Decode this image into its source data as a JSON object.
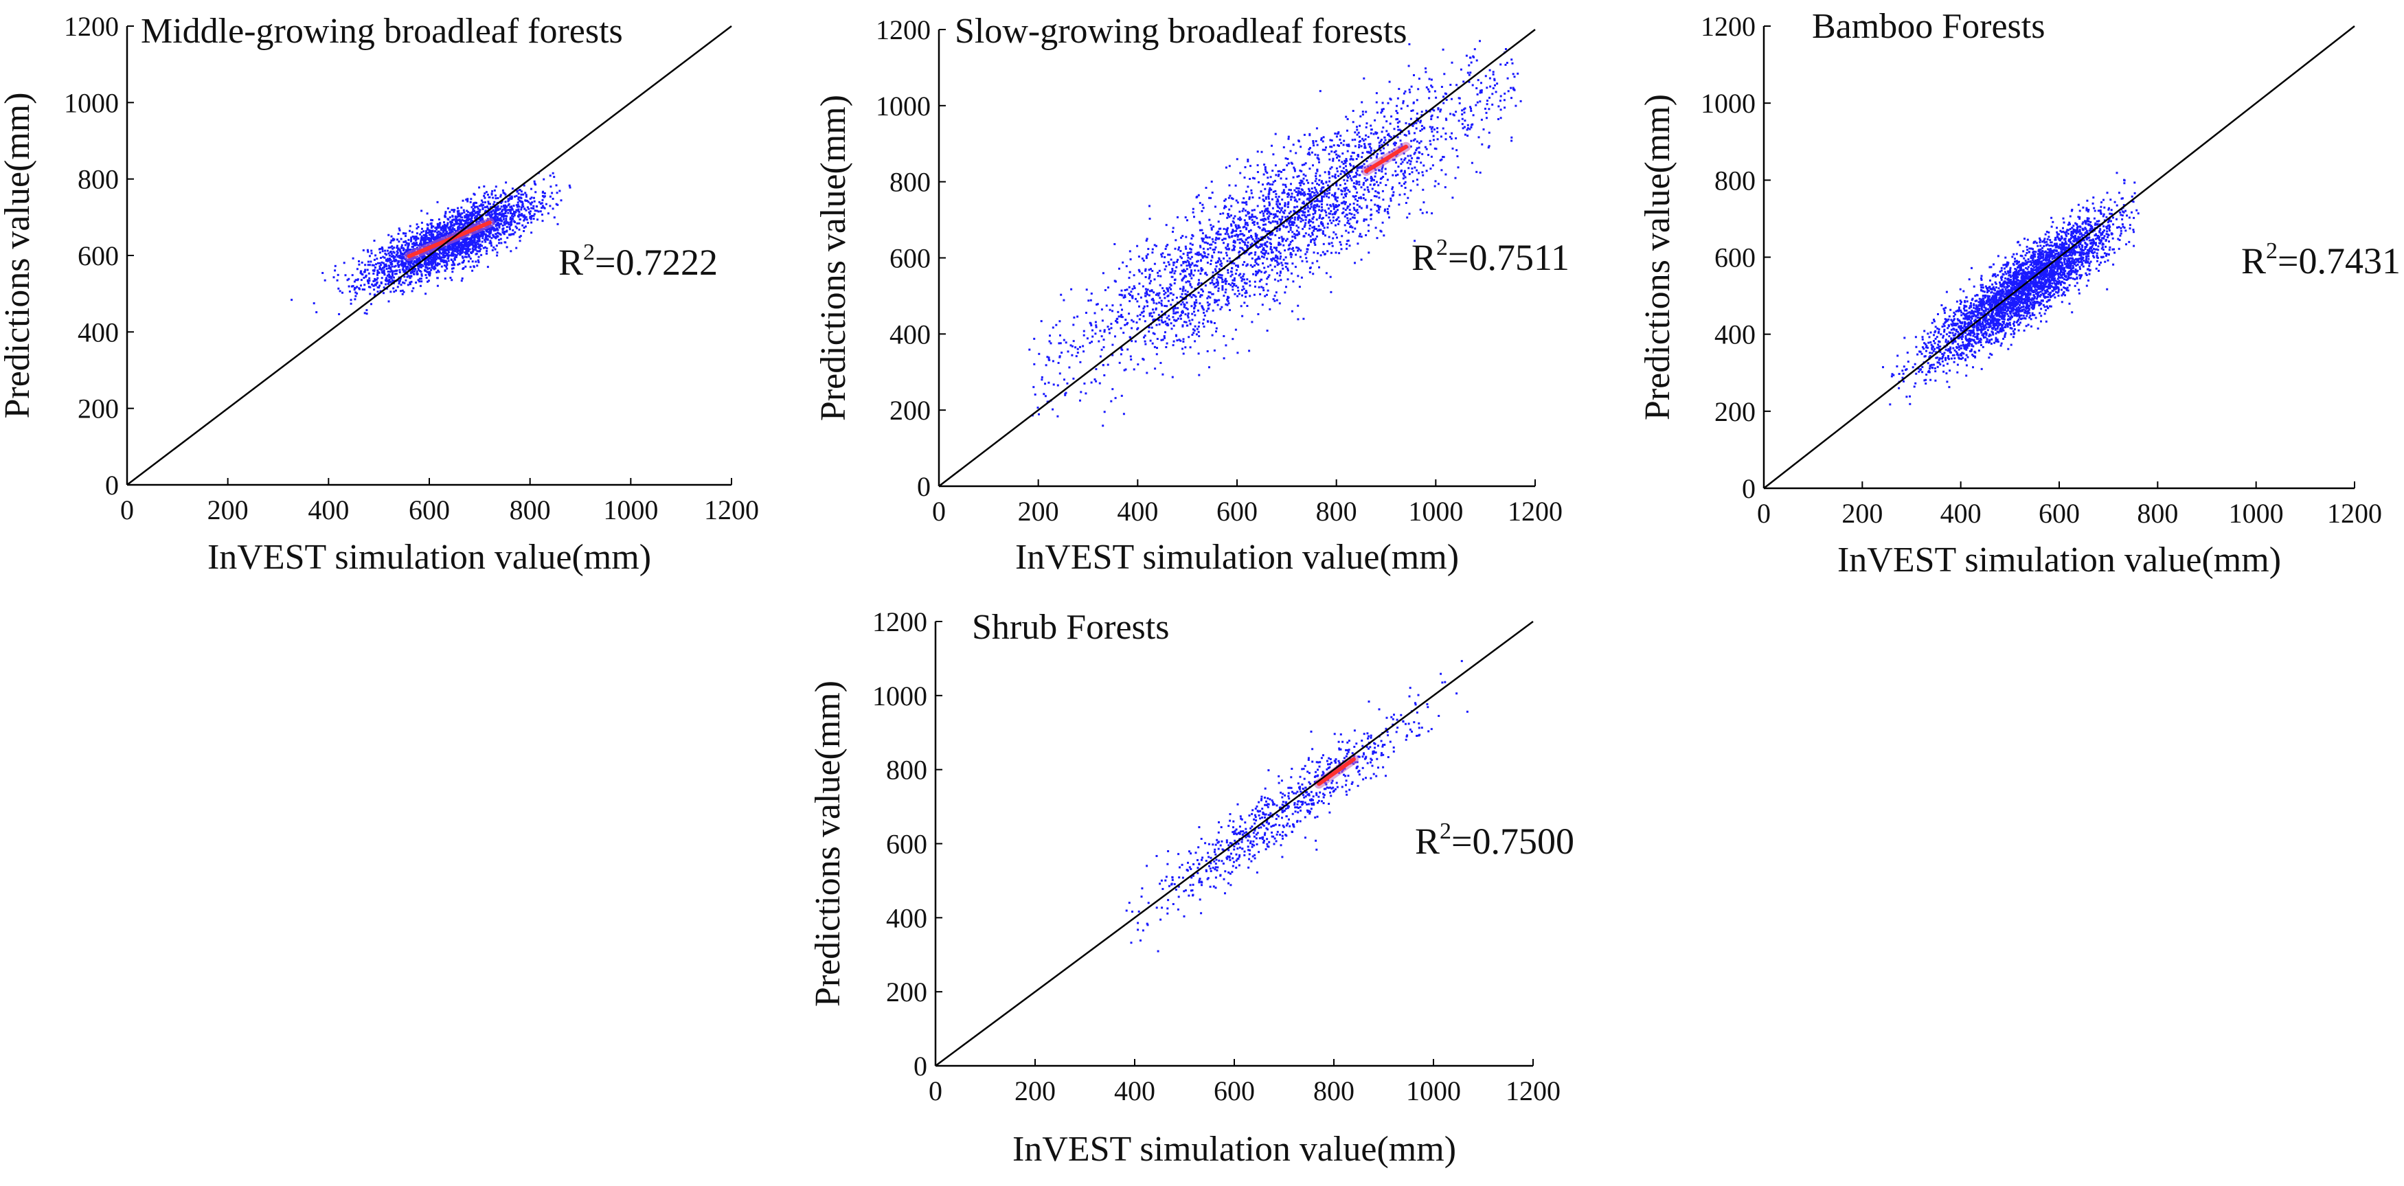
{
  "chart_data": [
    {
      "type": "scatter",
      "title": "Middle-growing broadleaf forests",
      "xlabel": "InVEST simulation value(mm)",
      "ylabel": "Predictions value(mm)",
      "xlim": [
        0,
        1200
      ],
      "ylim": [
        0,
        1200
      ],
      "xticks": [
        "0",
        "200",
        "400",
        "600",
        "800",
        "1000",
        "1200"
      ],
      "yticks": [
        "0",
        "200",
        "400",
        "600",
        "800",
        "1000",
        "1200"
      ],
      "r2_label": "R",
      "r2_sup": "2",
      "r2_value": "=0.7222",
      "reference_line": [
        [
          0,
          0
        ],
        [
          1200,
          1200
        ]
      ],
      "cloud": {
        "x_center": 640,
        "x_spread": 85,
        "x_min": 250,
        "x_max": 880,
        "slope": 0.55,
        "intercept": 290,
        "residual_sd": 35,
        "n": 2600
      },
      "dense_core": {
        "x_from": 560,
        "x_to": 720
      },
      "colors": {
        "points": "#1a1aff",
        "density_core": "#ff3030",
        "density_mid": "#c060c0",
        "line": "#000000"
      }
    },
    {
      "type": "scatter",
      "title": "Slow-growing broadleaf forests",
      "xlabel": "InVEST simulation value(mm)",
      "ylabel": "Predictions value(mm)",
      "xlim": [
        0,
        1200
      ],
      "ylim": [
        0,
        1200
      ],
      "xticks": [
        "0",
        "200",
        "400",
        "600",
        "800",
        "1000",
        "1200"
      ],
      "yticks": [
        "0",
        "200",
        "400",
        "600",
        "800",
        "1000",
        "1200"
      ],
      "r2_label": "R",
      "r2_sup": "2",
      "r2_value": "=0.7511",
      "reference_line": [
        [
          0,
          0
        ],
        [
          1200,
          1200
        ]
      ],
      "cloud": {
        "x_center": 680,
        "x_spread": 220,
        "x_min": 180,
        "x_max": 1170,
        "slope": 0.8,
        "intercept": 140,
        "residual_sd": 90,
        "n": 2800
      },
      "dense_core": {
        "x_from": 860,
        "x_to": 940
      },
      "colors": {
        "points": "#1a1aff",
        "density_core": "#ff3030",
        "density_mid": "#c060c0",
        "line": "#000000"
      }
    },
    {
      "type": "scatter",
      "title": "Bamboo Forests",
      "xlabel": "InVEST simulation value(mm)",
      "ylabel": "Predictions value(mm)",
      "xlim": [
        0,
        1200
      ],
      "ylim": [
        0,
        1200
      ],
      "xticks": [
        "0",
        "200",
        "400",
        "600",
        "800",
        "1000",
        "1200"
      ],
      "yticks": [
        "0",
        "200",
        "400",
        "600",
        "800",
        "1000",
        "1200"
      ],
      "r2_label": "R",
      "r2_sup": "2",
      "r2_value": "=0.7431",
      "reference_line": [
        [
          0,
          0
        ],
        [
          1200,
          1200
        ]
      ],
      "cloud": {
        "x_center": 530,
        "x_spread": 95,
        "x_min": 230,
        "x_max": 760,
        "slope": 0.88,
        "intercept": 60,
        "residual_sd": 45,
        "n": 3400
      },
      "dense_core": {
        "x_from": 0,
        "x_to": 0
      },
      "colors": {
        "points": "#1a1aff",
        "density_core": "#ff3030",
        "density_mid": "#c060c0",
        "line": "#000000"
      }
    },
    {
      "type": "scatter",
      "title": "Shrub Forests",
      "xlabel": "InVEST simulation value(mm)",
      "ylabel": "Predictions value(mm)",
      "xlim": [
        0,
        1200
      ],
      "ylim": [
        0,
        1200
      ],
      "xticks": [
        "0",
        "200",
        "400",
        "600",
        "800",
        "1000",
        "1200"
      ],
      "yticks": [
        "0",
        "200",
        "400",
        "600",
        "800",
        "1000",
        "1200"
      ],
      "r2_label": "R",
      "r2_sup": "2",
      "r2_value": "=0.7500",
      "reference_line": [
        [
          0,
          0
        ],
        [
          1200,
          1200
        ]
      ],
      "cloud": {
        "x_center": 700,
        "x_spread": 140,
        "x_min": 380,
        "x_max": 1080,
        "slope": 0.95,
        "intercept": 30,
        "residual_sd": 45,
        "n": 750
      },
      "dense_core": {
        "x_from": 770,
        "x_to": 840
      },
      "colors": {
        "points": "#1a1aff",
        "density_core": "#ff3030",
        "density_mid": "#c060c0",
        "line": "#000000"
      }
    }
  ]
}
